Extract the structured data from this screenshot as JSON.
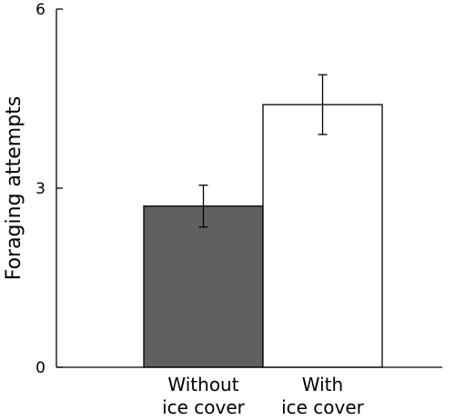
{
  "chart_data": {
    "type": "bar",
    "ylabel": "Foraging attempts",
    "xlabel": "",
    "ylim": [
      0,
      6
    ],
    "yticks": [
      {
        "value": 0,
        "label": "0"
      },
      {
        "value": 3,
        "label": "3"
      },
      {
        "value": 6,
        "label": "6"
      }
    ],
    "categories": [
      {
        "line1": "Without",
        "line2": "ice cover"
      },
      {
        "line1": "With",
        "line2": "ice cover"
      }
    ],
    "values": [
      2.7,
      4.4
    ],
    "errors": [
      {
        "low": 2.35,
        "high": 3.05
      },
      {
        "low": 3.9,
        "high": 4.9
      }
    ],
    "colors": [
      "#606060",
      "#ffffff"
    ],
    "edge_color": "#000000"
  }
}
